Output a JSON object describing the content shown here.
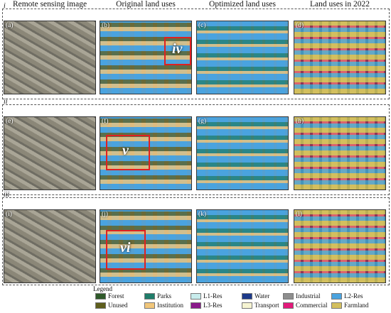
{
  "headers": [
    "Remote sensing image",
    "Original land uses",
    "Optimized land uses",
    "Land uses in 2022"
  ],
  "rows": [
    {
      "label": "i",
      "panels": [
        "(a)",
        "(b)",
        "(c)",
        "(d)"
      ],
      "annotation": "iv"
    },
    {
      "label": "ii",
      "panels": [
        "(e)",
        "(f)",
        "(g)",
        "(h)"
      ],
      "annotation": "v"
    },
    {
      "label": "iii",
      "panels": [
        "(i)",
        "(j)",
        "(k)",
        "(l)"
      ],
      "annotation": "vi"
    }
  ],
  "legend": {
    "title": "Legend",
    "items": [
      {
        "name": "Forest",
        "color": "#2f5a2a"
      },
      {
        "name": "Parks",
        "color": "#1f7d6a"
      },
      {
        "name": "L1-Res",
        "color": "#c8ecec"
      },
      {
        "name": "Water",
        "color": "#1d3a8a"
      },
      {
        "name": "Industrial",
        "color": "#8e8e8e"
      },
      {
        "name": "L2-Res",
        "color": "#4aa3df"
      },
      {
        "name": "Unused",
        "color": "#5e5e1c"
      },
      {
        "name": "Institution",
        "color": "#f1c67a"
      },
      {
        "name": "L3-Res",
        "color": "#8a1a8a"
      },
      {
        "name": "Transport",
        "color": "#f6f4d2"
      },
      {
        "name": "Commercial",
        "color": "#e2197a"
      },
      {
        "name": "Farmland",
        "color": "#d3bf5e"
      }
    ]
  }
}
